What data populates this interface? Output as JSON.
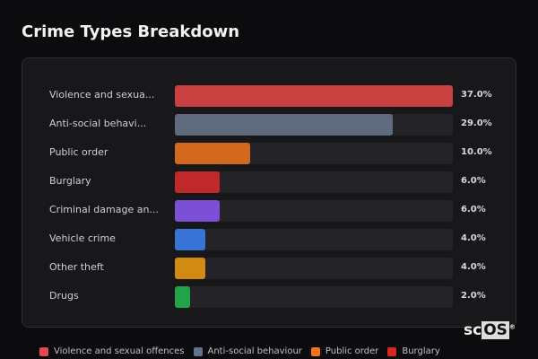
{
  "title": "Crime Types Breakdown",
  "logo": {
    "prefix": "sc",
    "boxed": "OS",
    "mark": "®"
  },
  "chart_data": {
    "type": "bar",
    "orientation": "horizontal",
    "title": "Crime Types Breakdown",
    "categories": [
      "Violence and sexua...",
      "Anti-social behavi...",
      "Public order",
      "Burglary",
      "Criminal damage an...",
      "Vehicle crime",
      "Other theft",
      "Drugs"
    ],
    "values": [
      37.0,
      29.0,
      10.0,
      6.0,
      6.0,
      4.0,
      4.0,
      2.0
    ],
    "value_labels": [
      "37.0%",
      "29.0%",
      "10.0%",
      "6.0%",
      "6.0%",
      "4.0%",
      "4.0%",
      "2.0%"
    ],
    "colors": [
      "#c94040",
      "#5f6b7c",
      "#d2691e",
      "#c0282b",
      "#7b4fd6",
      "#3874d8",
      "#d18a12",
      "#22a34a"
    ],
    "xlim": [
      0,
      37
    ],
    "legend": {
      "placement": "bottom",
      "entries": [
        {
          "label": "Violence and sexual offences",
          "color": "#e5484d"
        },
        {
          "label": "Anti-social behaviour",
          "color": "#64748b"
        },
        {
          "label": "Public order",
          "color": "#f97316"
        },
        {
          "label": "Burglary",
          "color": "#dc2626"
        }
      ]
    }
  }
}
